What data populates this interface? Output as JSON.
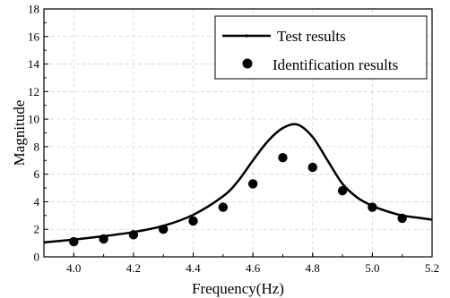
{
  "chart_data": {
    "type": "line",
    "xlabel": "Frequency(Hz)",
    "ylabel": "Magnitude",
    "xlim": [
      3.9,
      5.2
    ],
    "ylim": [
      0,
      18
    ],
    "x_ticks": [
      "4.0",
      "4.2",
      "4.4",
      "4.6",
      "4.8",
      "5.0",
      "5.2"
    ],
    "y_ticks": [
      "0",
      "2",
      "4",
      "6",
      "8",
      "10",
      "12",
      "14",
      "16",
      "18"
    ],
    "grid": true,
    "legend_position": "top-right",
    "series": [
      {
        "name": "Test results",
        "style": "line",
        "color": "#000000",
        "x": [
          3.9,
          4.0,
          4.1,
          4.2,
          4.3,
          4.4,
          4.5,
          4.55,
          4.6,
          4.65,
          4.7,
          4.75,
          4.8,
          4.85,
          4.9,
          4.95,
          5.0,
          5.05,
          5.1,
          5.15,
          5.2
        ],
        "y": [
          1.05,
          1.25,
          1.5,
          1.8,
          2.25,
          3.05,
          4.4,
          5.5,
          7.0,
          8.4,
          9.35,
          9.6,
          8.7,
          7.0,
          5.3,
          4.3,
          3.7,
          3.3,
          3.0,
          2.85,
          2.7
        ]
      },
      {
        "name": "Identification results",
        "style": "scatter",
        "color": "#000000",
        "x": [
          4.0,
          4.1,
          4.2,
          4.3,
          4.4,
          4.5,
          4.6,
          4.7,
          4.8,
          4.9,
          5.0,
          5.1
        ],
        "y": [
          1.1,
          1.3,
          1.6,
          2.0,
          2.6,
          3.6,
          5.3,
          7.2,
          6.5,
          4.8,
          3.6,
          2.8
        ]
      }
    ]
  }
}
